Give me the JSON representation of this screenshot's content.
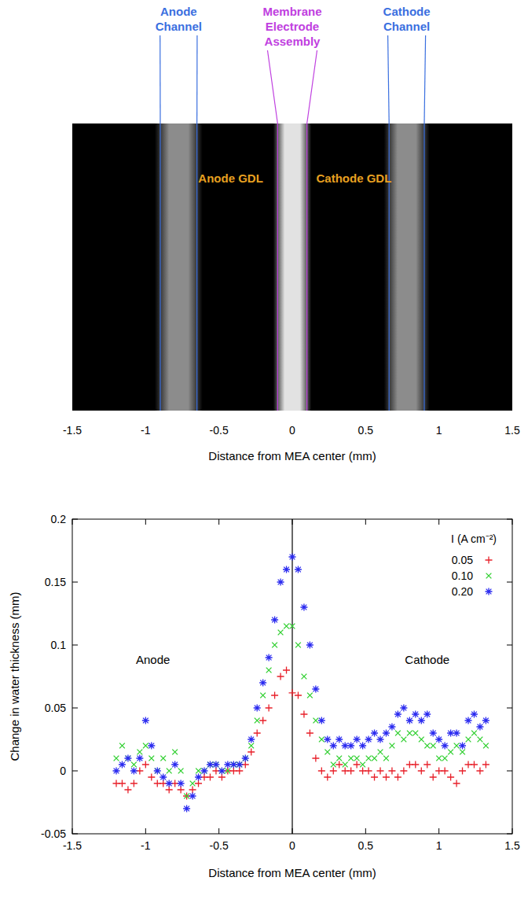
{
  "chart_data": [
    {
      "type": "image",
      "xlabel": "Distance from MEA center (mm)",
      "xlim": [
        -1.5,
        1.5
      ],
      "xticks": [
        -1.5,
        -1,
        -0.5,
        0,
        0.5,
        1,
        1.5
      ],
      "bands": [
        {
          "name": "Anode Channel",
          "x": [
            -0.9,
            -0.65
          ],
          "color": "#3a6fe0"
        },
        {
          "name": "Membrane Electrode Assembly",
          "x": [
            -0.1,
            0.1
          ],
          "color": "#c040e0"
        },
        {
          "name": "Cathode Channel",
          "x": [
            0.66,
            0.9
          ],
          "color": "#3a6fe0"
        }
      ],
      "annotations": [
        {
          "text": "Anode GDL",
          "x": -0.42,
          "color": "#e8a020"
        },
        {
          "text": "Cathode GDL",
          "x": 0.42,
          "color": "#e8a020"
        }
      ]
    },
    {
      "type": "scatter",
      "xlabel": "Distance from MEA center (mm)",
      "ylabel": "Change in water thickness (mm)",
      "xlim": [
        -1.5,
        1.5
      ],
      "ylim": [
        -0.05,
        0.2
      ],
      "xticks": [
        -1.5,
        -1,
        -0.5,
        0,
        0.5,
        1,
        1.5
      ],
      "yticks": [
        -0.05,
        0,
        0.05,
        0.1,
        0.15,
        0.2
      ],
      "legend": "upper right",
      "legend_title": "I (A cm⁻²)",
      "vlines": [
        0
      ],
      "annotations": [
        {
          "text": "Anode",
          "x": -0.95,
          "y": 0.085
        },
        {
          "text": "Cathode",
          "x": 0.92,
          "y": 0.085
        }
      ],
      "x": [
        -1.2,
        -1.16,
        -1.12,
        -1.08,
        -1.04,
        -1,
        -0.96,
        -0.92,
        -0.88,
        -0.84,
        -0.8,
        -0.76,
        -0.72,
        -0.68,
        -0.64,
        -0.6,
        -0.56,
        -0.52,
        -0.48,
        -0.44,
        -0.4,
        -0.36,
        -0.32,
        -0.28,
        -0.24,
        -0.2,
        -0.16,
        -0.12,
        -0.08,
        -0.04,
        0,
        0.04,
        0.08,
        0.12,
        0.16,
        0.2,
        0.24,
        0.28,
        0.32,
        0.36,
        0.4,
        0.44,
        0.48,
        0.52,
        0.56,
        0.6,
        0.64,
        0.68,
        0.72,
        0.76,
        0.8,
        0.84,
        0.88,
        0.92,
        0.96,
        1,
        1.04,
        1.08,
        1.12,
        1.16,
        1.2,
        1.24,
        1.28,
        1.32
      ],
      "series": [
        {
          "name": "0.05",
          "color": "#e8202a",
          "marker": "plus",
          "values": [
            -0.01,
            -0.01,
            -0.015,
            -0.01,
            0,
            0.005,
            -0.005,
            -0.01,
            -0.01,
            -0.015,
            -0.01,
            -0.015,
            -0.02,
            -0.015,
            -0.01,
            -0.005,
            -0.005,
            0,
            -0.005,
            0,
            0,
            0,
            0.005,
            0.015,
            0.03,
            0.04,
            0.05,
            0.06,
            0.075,
            0.08,
            0.062,
            0.06,
            0.045,
            0.03,
            0.01,
            0,
            -0.005,
            0,
            0.005,
            0,
            0,
            0.005,
            0,
            0,
            -0.005,
            0,
            -0.005,
            0,
            -0.005,
            0,
            0.005,
            0.005,
            0,
            0.005,
            -0.005,
            0,
            0,
            -0.005,
            -0.01,
            0,
            0.005,
            0.005,
            0,
            0.005
          ]
        },
        {
          "name": "0.10",
          "color": "#2fcf2f",
          "marker": "x",
          "values": [
            0.01,
            0.02,
            0.01,
            0.005,
            0.015,
            0.02,
            0.01,
            0,
            0.01,
            0,
            0.015,
            0,
            -0.02,
            -0.01,
            0,
            0,
            0.005,
            0.005,
            0,
            0,
            0.005,
            0.005,
            0.01,
            0.02,
            0.04,
            0.06,
            0.08,
            0.1,
            0.11,
            0.115,
            0.115,
            0.1,
            0.075,
            0.06,
            0.04,
            0.025,
            0.015,
            0.005,
            0.01,
            0.005,
            0.01,
            0.01,
            0.005,
            0.01,
            0.01,
            0.015,
            0.01,
            0.02,
            0.03,
            0.025,
            0.03,
            0.03,
            0.025,
            0.02,
            0.02,
            0.01,
            0.01,
            0.015,
            0.02,
            0.015,
            0.025,
            0.03,
            0.025,
            0.02
          ]
        },
        {
          "name": "0.20",
          "color": "#2a2af0",
          "marker": "star",
          "values": [
            0,
            0.005,
            0.01,
            0,
            0.01,
            0.04,
            0.02,
            0,
            -0.005,
            -0.01,
            0.005,
            -0.01,
            -0.03,
            -0.02,
            -0.005,
            0,
            0.005,
            0.005,
            0,
            0.005,
            0.005,
            0.005,
            0.01,
            0.025,
            0.05,
            0.07,
            0.09,
            0.12,
            0.15,
            0.16,
            0.17,
            0.16,
            0.13,
            0.1,
            0.065,
            0.04,
            0.025,
            0.02,
            0.025,
            0.02,
            0.02,
            0.025,
            0.02,
            0.025,
            0.03,
            0.025,
            0.03,
            0.035,
            0.045,
            0.05,
            0.04,
            0.045,
            0.04,
            0.045,
            0.03,
            0.025,
            0.02,
            0.03,
            0.03,
            0.02,
            0.04,
            0.045,
            0.035,
            0.04
          ]
        }
      ]
    }
  ]
}
